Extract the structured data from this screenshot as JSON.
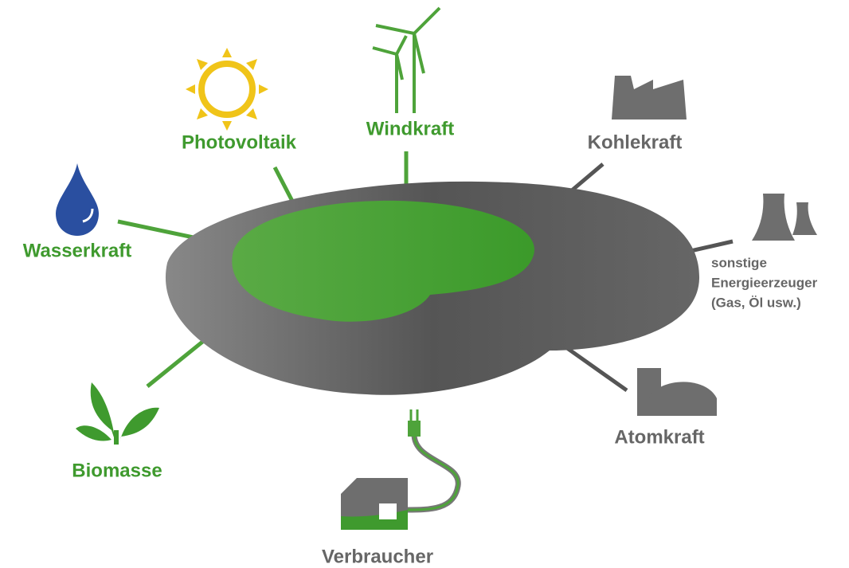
{
  "nodes": [
    {
      "label": "Photovoltaik"
    },
    {
      "label": "Windkraft"
    },
    {
      "label": "Kohlekraft"
    },
    {
      "label": "Wasserkraft"
    },
    {
      "label": [
        "sonstige",
        "Energieerzeuger",
        "(Gas, Öl usw.)"
      ]
    },
    {
      "label": "Atomkraft"
    },
    {
      "label": "Biomasse"
    },
    {
      "label": "Verbraucher"
    }
  ]
}
